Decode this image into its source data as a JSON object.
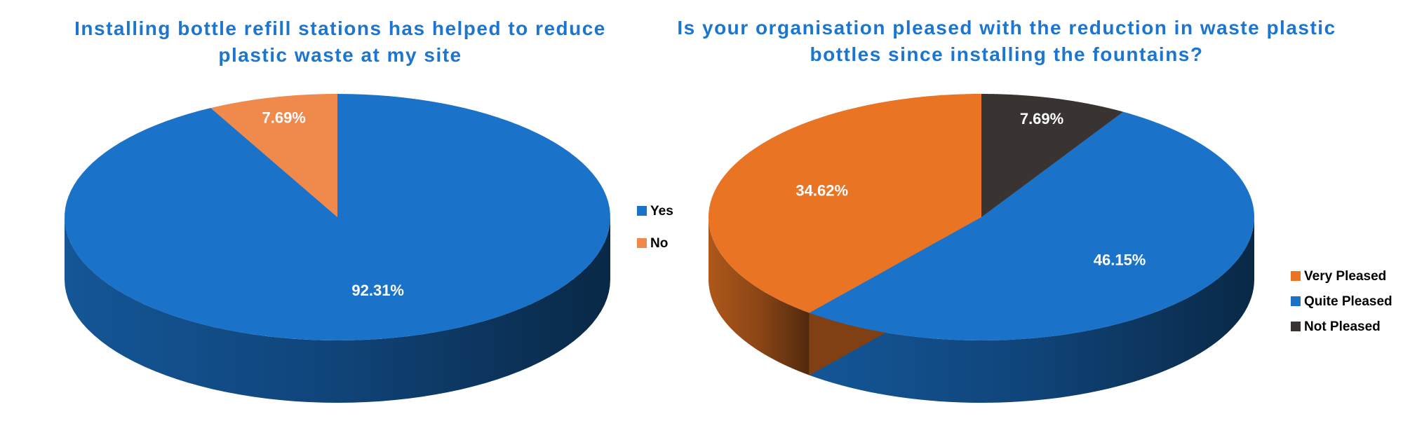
{
  "chart_data": [
    {
      "type": "pie",
      "title": "Installing bottle refill stations has helped to reduce plastic waste at my site",
      "categories": [
        "Yes",
        "No"
      ],
      "values": [
        92.31,
        7.69
      ],
      "value_labels": [
        "92.31%",
        "7.69%"
      ],
      "colors": [
        "#1a72c9",
        "#ef8a4c"
      ],
      "clockwise": true,
      "legend": "right"
    },
    {
      "type": "pie",
      "title": "Is your organisation pleased with the reduction in waste plastic bottles since installing the fountains?",
      "categories": [
        "Very Pleased",
        "Quite Pleased",
        "Not Pleased"
      ],
      "values": [
        34.62,
        46.15,
        7.69
      ],
      "value_labels": [
        "34.62%",
        "46.15%",
        "7.69%"
      ],
      "colors": [
        "#e87424",
        "#1a72c9",
        "#393331"
      ],
      "clockwise": false,
      "legend": "bottom-right"
    }
  ]
}
